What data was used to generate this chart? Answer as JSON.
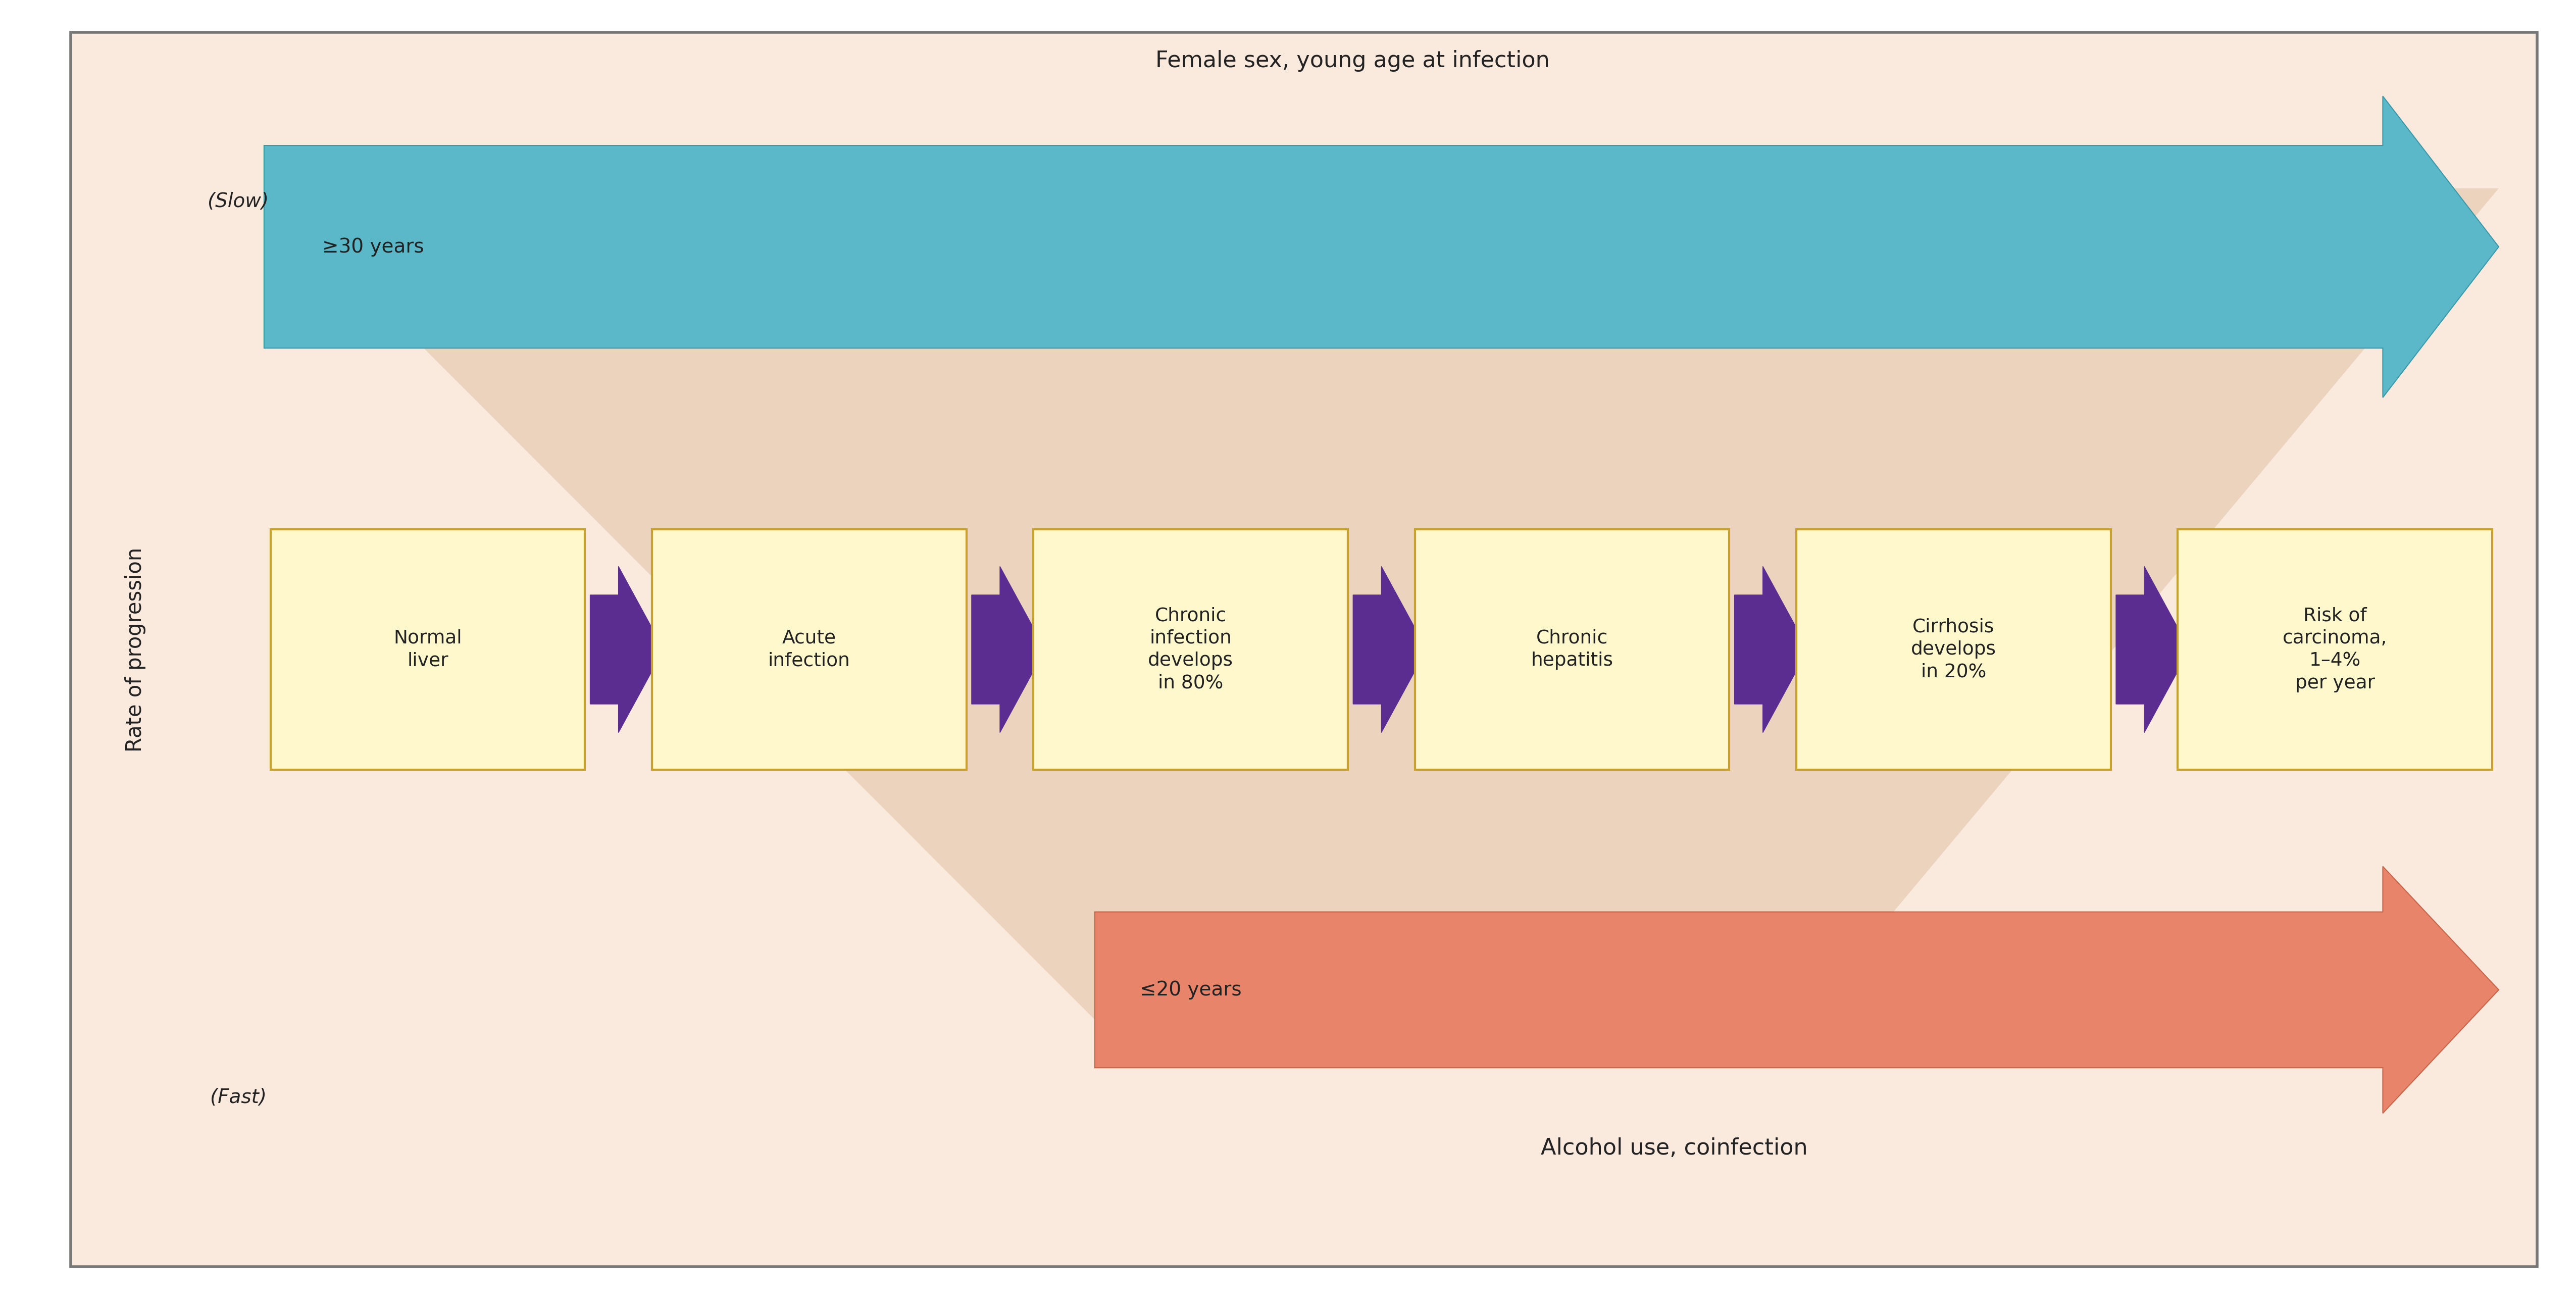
{
  "bg_outer": "#ffffff",
  "bg_color": "#faeade",
  "border_color": "#777777",
  "ylabel": "Rate of progression",
  "slow_label": "(Slow)",
  "fast_label": "(Fast)",
  "top_arrow_color": "#5ab8c9",
  "top_arrow_color_dark": "#3a98a9",
  "top_arrow_label": "Female sex, young age at infection",
  "top_arrow_sublabel": "≥30 years",
  "bottom_arrow_color": "#e8846a",
  "bottom_arrow_color_dark": "#c86448",
  "bottom_arrow_label": "Alcohol use, coinfection",
  "bottom_arrow_sublabel": "≤20 years",
  "box_fill_color": "#fef8cc",
  "box_edge_color": "#c8a030",
  "box_text_color": "#222222",
  "arrow_color": "#5c2d91",
  "boxes": [
    "Normal\nliver",
    "Acute\ninfection",
    "Chronic\ninfection\ndevelops\nin 80%",
    "Chronic\nhepatitis",
    "Cirrhosis\ndevelops\nin 20%",
    "Risk of\ncarcinoma,\n1–4%\nper year"
  ],
  "funnel_fill_color": "#ddb898",
  "funnel_alpha": 0.45
}
